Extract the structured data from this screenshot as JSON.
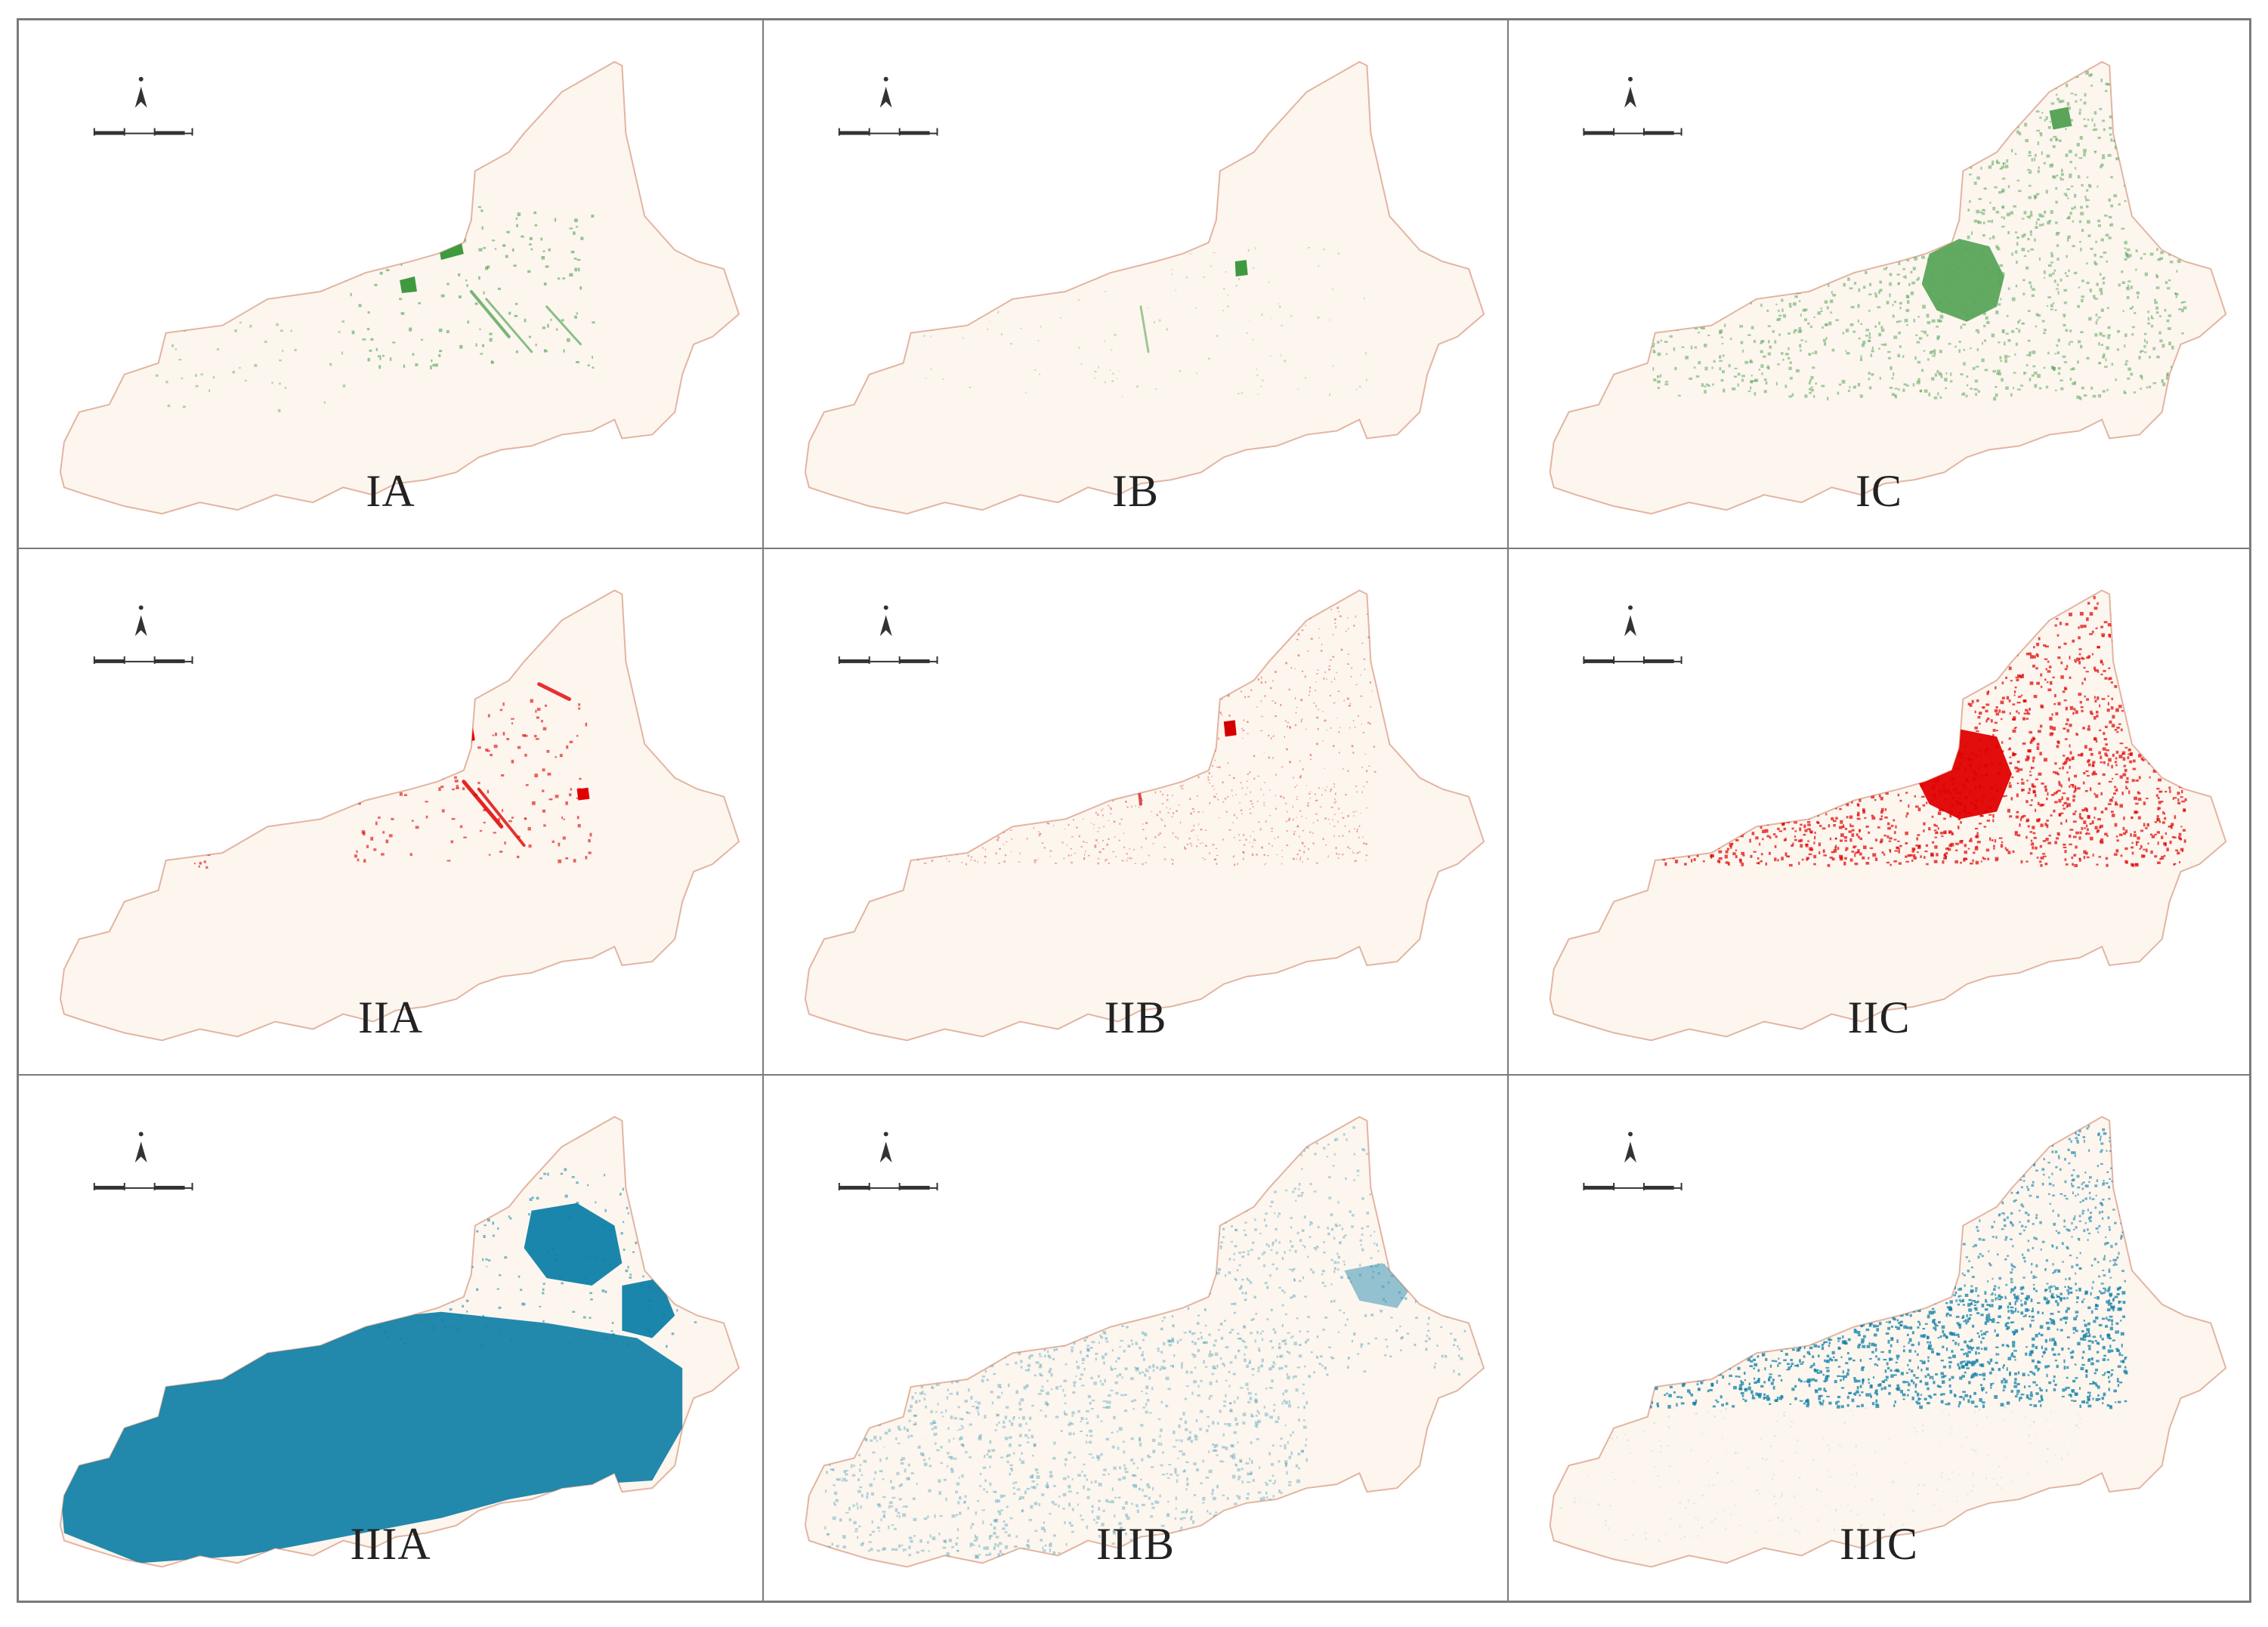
{
  "panels": [
    {
      "label": "IA",
      "theme": "green",
      "color": "#3f9a3f",
      "pattern": "A1"
    },
    {
      "label": "IB",
      "theme": "green",
      "color": "#3f9a3f",
      "pattern": "B1"
    },
    {
      "label": "IC",
      "theme": "green",
      "color": "#5aa55a",
      "pattern": "C1"
    },
    {
      "label": "IIA",
      "theme": "red",
      "color": "#e00000",
      "pattern": "A2"
    },
    {
      "label": "IIB",
      "theme": "red",
      "color": "#d40000",
      "pattern": "B2"
    },
    {
      "label": "IIC",
      "theme": "red",
      "color": "#e00000",
      "pattern": "C2"
    },
    {
      "label": "IIIA",
      "theme": "blue",
      "color": "#0f7fa6",
      "pattern": "A3"
    },
    {
      "label": "IIIB",
      "theme": "blue",
      "color": "#2a8cb0",
      "pattern": "B3"
    },
    {
      "label": "IIIC",
      "theme": "blue",
      "color": "#0f7fa6",
      "pattern": "C3"
    }
  ],
  "colors": {
    "map_fill": "#fcf6ef",
    "map_border": "#e3b4a0",
    "grid_line": "#7a7a7a",
    "label_text": "#222222"
  },
  "icons": {
    "north_arrow": "north-arrow-icon",
    "scale_bar": "scale-bar-icon"
  }
}
